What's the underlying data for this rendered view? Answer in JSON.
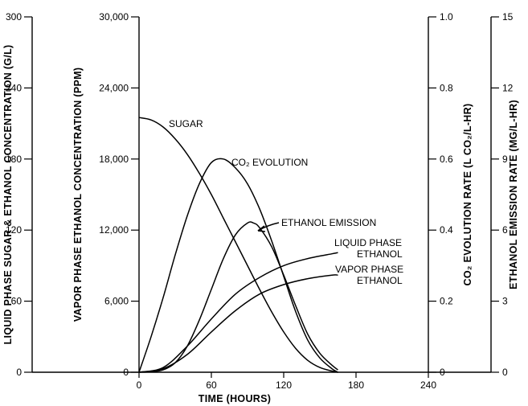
{
  "chart_data": {
    "type": "line",
    "xlabel": "TIME (HOURS)",
    "x_ticks": [
      "0",
      "60",
      "120",
      "180",
      "240"
    ],
    "xlim": [
      0,
      240
    ],
    "axes": [
      {
        "id": "sugar",
        "label": "LIQUID PHASE SUGAR & ETHANOL CONCENTRATION (G/L)",
        "ticks": [
          "0",
          "60",
          "120",
          "180",
          "240",
          "300"
        ],
        "ylim": [
          0,
          300
        ]
      },
      {
        "id": "vapor",
        "label": "VAPOR PHASE ETHANOL CONCENTRATION (PPM)",
        "ticks": [
          "0",
          "6,000",
          "12,000",
          "18,000",
          "24,000",
          "30,000"
        ],
        "ylim": [
          0,
          30000
        ]
      },
      {
        "id": "co2",
        "label": "CO₂ EVOLUTION RATE (L CO₂/L-HR)",
        "ticks": [
          "0",
          "0.2",
          "0.4",
          "0.6",
          "0.8",
          "1.0"
        ],
        "ylim": [
          0,
          1.0
        ]
      },
      {
        "id": "emission",
        "label": "ETHANOL EMISSION RATE (MG/L-HR)",
        "ticks": [
          "0",
          "3",
          "6",
          "9",
          "12",
          "15"
        ],
        "ylim": [
          0,
          15
        ]
      }
    ],
    "series": [
      {
        "name": "SUGAR",
        "axis": "sugar",
        "x": [
          0,
          10,
          20,
          30,
          40,
          50,
          60,
          70,
          80,
          90,
          100,
          110,
          120,
          130,
          140,
          150,
          160,
          165
        ],
        "y": [
          215,
          213,
          207,
          197,
          184,
          168,
          150,
          130,
          110,
          90,
          70,
          51,
          34,
          20,
          10,
          4,
          1,
          0
        ]
      },
      {
        "name": "CO₂ EVOLUTION",
        "axis": "co2",
        "x": [
          0,
          10,
          20,
          30,
          40,
          50,
          60,
          70,
          80,
          90,
          100,
          110,
          120,
          130,
          140,
          150,
          160,
          165
        ],
        "y": [
          0,
          0.1,
          0.21,
          0.33,
          0.44,
          0.53,
          0.59,
          0.6,
          0.575,
          0.53,
          0.46,
          0.37,
          0.27,
          0.17,
          0.09,
          0.04,
          0.01,
          0
        ]
      },
      {
        "name": "ETHANOL EMISSION",
        "axis": "emission",
        "x": [
          0,
          10,
          20,
          30,
          40,
          50,
          60,
          70,
          80,
          90,
          95,
          100,
          110,
          120,
          130,
          140,
          150,
          160,
          165
        ],
        "y": [
          0,
          0.02,
          0.1,
          0.4,
          1.1,
          2.2,
          3.5,
          4.8,
          5.8,
          6.3,
          6.3,
          6.1,
          5.3,
          4.1,
          2.8,
          1.6,
          0.8,
          0.3,
          0.1
        ]
      },
      {
        "name": "LIQUID PHASE ETHANOL",
        "axis": "sugar",
        "x": [
          0,
          20,
          40,
          60,
          80,
          100,
          120,
          140,
          160,
          165
        ],
        "y": [
          0,
          4,
          22,
          45,
          66,
          80,
          90,
          96,
          100,
          101
        ]
      },
      {
        "name": "VAPOR PHASE ETHANOL",
        "axis": "sugar",
        "x": [
          0,
          20,
          40,
          60,
          80,
          100,
          120,
          140,
          160,
          165
        ],
        "y": [
          0,
          3,
          15,
          34,
          52,
          66,
          74,
          79,
          82,
          82
        ]
      }
    ],
    "annotations": [
      "SUGAR",
      "CO₂ EVOLUTION",
      "ETHANOL EMISSION",
      "LIQUID PHASE",
      "ETHANOL",
      "VAPOR PHASE",
      "ETHANOL"
    ],
    "grid": false,
    "legend": "none"
  }
}
